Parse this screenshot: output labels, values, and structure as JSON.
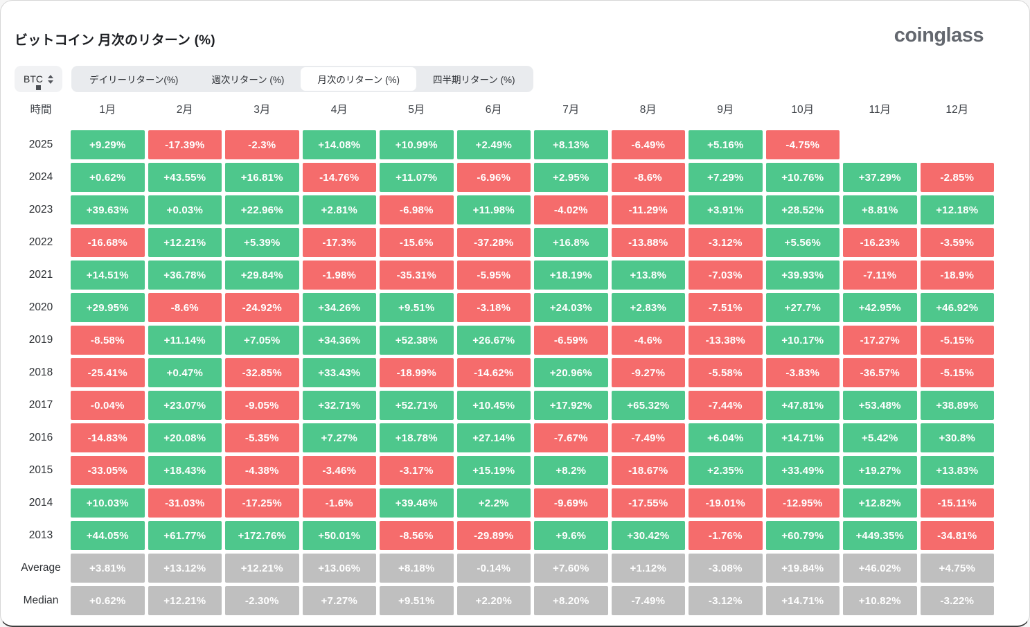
{
  "page": {
    "title": "ビットコイン 月次のリターン (%)",
    "logo": "coinglass"
  },
  "controls": {
    "symbol_select": {
      "value": "BTC"
    },
    "tabs": [
      {
        "label": "デイリーリターン(%)",
        "active": false
      },
      {
        "label": "週次リターン (%)",
        "active": false
      },
      {
        "label": "月次のリターン (%)",
        "active": true
      },
      {
        "label": "四半期リターン (%)",
        "active": false
      }
    ]
  },
  "chart_data": {
    "type": "heatmap",
    "title": "ビットコイン 月次のリターン (%)",
    "unit": "%",
    "time_column_header": "時間",
    "columns": [
      "1月",
      "2月",
      "3月",
      "4月",
      "5月",
      "6月",
      "7月",
      "8月",
      "9月",
      "10月",
      "11月",
      "12月"
    ],
    "rows": [
      {
        "label": "2025",
        "neutral": false,
        "values": [
          "+9.29%",
          "-17.39%",
          "-2.3%",
          "+14.08%",
          "+10.99%",
          "+2.49%",
          "+8.13%",
          "-6.49%",
          "+5.16%",
          "-4.75%",
          null,
          null
        ]
      },
      {
        "label": "2024",
        "neutral": false,
        "values": [
          "+0.62%",
          "+43.55%",
          "+16.81%",
          "-14.76%",
          "+11.07%",
          "-6.96%",
          "+2.95%",
          "-8.6%",
          "+7.29%",
          "+10.76%",
          "+37.29%",
          "-2.85%"
        ]
      },
      {
        "label": "2023",
        "neutral": false,
        "values": [
          "+39.63%",
          "+0.03%",
          "+22.96%",
          "+2.81%",
          "-6.98%",
          "+11.98%",
          "-4.02%",
          "-11.29%",
          "+3.91%",
          "+28.52%",
          "+8.81%",
          "+12.18%"
        ]
      },
      {
        "label": "2022",
        "neutral": false,
        "values": [
          "-16.68%",
          "+12.21%",
          "+5.39%",
          "-17.3%",
          "-15.6%",
          "-37.28%",
          "+16.8%",
          "-13.88%",
          "-3.12%",
          "+5.56%",
          "-16.23%",
          "-3.59%"
        ]
      },
      {
        "label": "2021",
        "neutral": false,
        "values": [
          "+14.51%",
          "+36.78%",
          "+29.84%",
          "-1.98%",
          "-35.31%",
          "-5.95%",
          "+18.19%",
          "+13.8%",
          "-7.03%",
          "+39.93%",
          "-7.11%",
          "-18.9%"
        ]
      },
      {
        "label": "2020",
        "neutral": false,
        "values": [
          "+29.95%",
          "-8.6%",
          "-24.92%",
          "+34.26%",
          "+9.51%",
          "-3.18%",
          "+24.03%",
          "+2.83%",
          "-7.51%",
          "+27.7%",
          "+42.95%",
          "+46.92%"
        ]
      },
      {
        "label": "2019",
        "neutral": false,
        "values": [
          "-8.58%",
          "+11.14%",
          "+7.05%",
          "+34.36%",
          "+52.38%",
          "+26.67%",
          "-6.59%",
          "-4.6%",
          "-13.38%",
          "+10.17%",
          "-17.27%",
          "-5.15%"
        ]
      },
      {
        "label": "2018",
        "neutral": false,
        "values": [
          "-25.41%",
          "+0.47%",
          "-32.85%",
          "+33.43%",
          "-18.99%",
          "-14.62%",
          "+20.96%",
          "-9.27%",
          "-5.58%",
          "-3.83%",
          "-36.57%",
          "-5.15%"
        ]
      },
      {
        "label": "2017",
        "neutral": false,
        "values": [
          "-0.04%",
          "+23.07%",
          "-9.05%",
          "+32.71%",
          "+52.71%",
          "+10.45%",
          "+17.92%",
          "+65.32%",
          "-7.44%",
          "+47.81%",
          "+53.48%",
          "+38.89%"
        ]
      },
      {
        "label": "2016",
        "neutral": false,
        "values": [
          "-14.83%",
          "+20.08%",
          "-5.35%",
          "+7.27%",
          "+18.78%",
          "+27.14%",
          "-7.67%",
          "-7.49%",
          "+6.04%",
          "+14.71%",
          "+5.42%",
          "+30.8%"
        ]
      },
      {
        "label": "2015",
        "neutral": false,
        "values": [
          "-33.05%",
          "+18.43%",
          "-4.38%",
          "-3.46%",
          "-3.17%",
          "+15.19%",
          "+8.2%",
          "-18.67%",
          "+2.35%",
          "+33.49%",
          "+19.27%",
          "+13.83%"
        ]
      },
      {
        "label": "2014",
        "neutral": false,
        "values": [
          "+10.03%",
          "-31.03%",
          "-17.25%",
          "-1.6%",
          "+39.46%",
          "+2.2%",
          "-9.69%",
          "-17.55%",
          "-19.01%",
          "-12.95%",
          "+12.82%",
          "-15.11%"
        ]
      },
      {
        "label": "2013",
        "neutral": false,
        "values": [
          "+44.05%",
          "+61.77%",
          "+172.76%",
          "+50.01%",
          "-8.56%",
          "-29.89%",
          "+9.6%",
          "+30.42%",
          "-1.76%",
          "+60.79%",
          "+449.35%",
          "-34.81%"
        ]
      },
      {
        "label": "Average",
        "neutral": true,
        "values": [
          "+3.81%",
          "+13.12%",
          "+12.21%",
          "+13.06%",
          "+8.18%",
          "-0.14%",
          "+7.60%",
          "+1.12%",
          "-3.08%",
          "+19.84%",
          "+46.02%",
          "+4.75%"
        ]
      },
      {
        "label": "Median",
        "neutral": true,
        "values": [
          "+0.62%",
          "+12.21%",
          "-2.30%",
          "+7.27%",
          "+9.51%",
          "+2.20%",
          "+8.20%",
          "-7.49%",
          "-3.12%",
          "+14.71%",
          "+10.82%",
          "-3.22%"
        ]
      }
    ],
    "colors": {
      "positive": "#4ec78c",
      "negative": "#f56c6c",
      "neutral": "#bfbfbf"
    }
  }
}
